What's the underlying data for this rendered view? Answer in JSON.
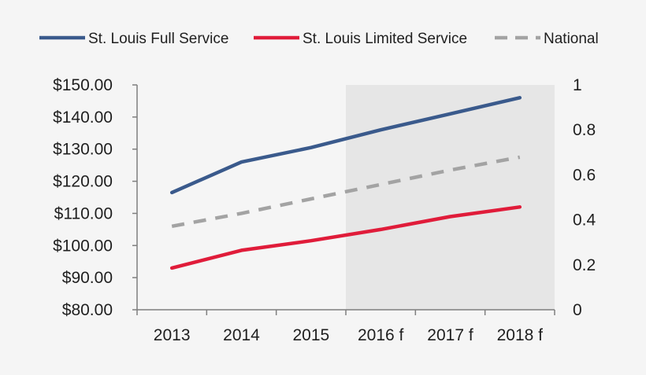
{
  "chart_data": {
    "type": "line",
    "categories": [
      "2013",
      "2014",
      "2015",
      "2016 f",
      "2017 f",
      "2018 f"
    ],
    "forecast_shading_from_category": "2016 f",
    "y_left": {
      "range": [
        80,
        150
      ],
      "ticks": [
        150,
        140,
        130,
        120,
        110,
        100,
        90,
        80
      ],
      "tick_labels": [
        "$150.00",
        "$140.00",
        "$130.00",
        "$120.00",
        "$110.00",
        "$100.00",
        "$90.00",
        "$80.00"
      ]
    },
    "y_right": {
      "range": [
        0,
        1
      ],
      "ticks": [
        1,
        0.8,
        0.6,
        0.4,
        0.2,
        0
      ],
      "tick_labels": [
        "1",
        "0.8",
        "0.6",
        "0.4",
        "0.2",
        "0"
      ]
    },
    "series": [
      {
        "name": "St. Louis Full Service",
        "axis": "left",
        "color": "#3a5a8c",
        "dash": "solid",
        "values": [
          116.5,
          126,
          130.5,
          136,
          141,
          146
        ]
      },
      {
        "name": "St. Louis Limited Service",
        "axis": "left",
        "color": "#e01c3a",
        "dash": "solid",
        "values": [
          93,
          98.5,
          101.5,
          105,
          109,
          112
        ]
      },
      {
        "name": "National",
        "axis": "left",
        "color": "#a3a3a3",
        "dash": "dashed",
        "values": [
          106,
          110,
          114.5,
          119,
          123.5,
          127.5
        ]
      }
    ],
    "legend_position": "top",
    "grid": false,
    "colors": {
      "background": "#f5f5f5",
      "forecast_shade": "#e6e6e6",
      "axis": "#7f7f7f"
    }
  }
}
